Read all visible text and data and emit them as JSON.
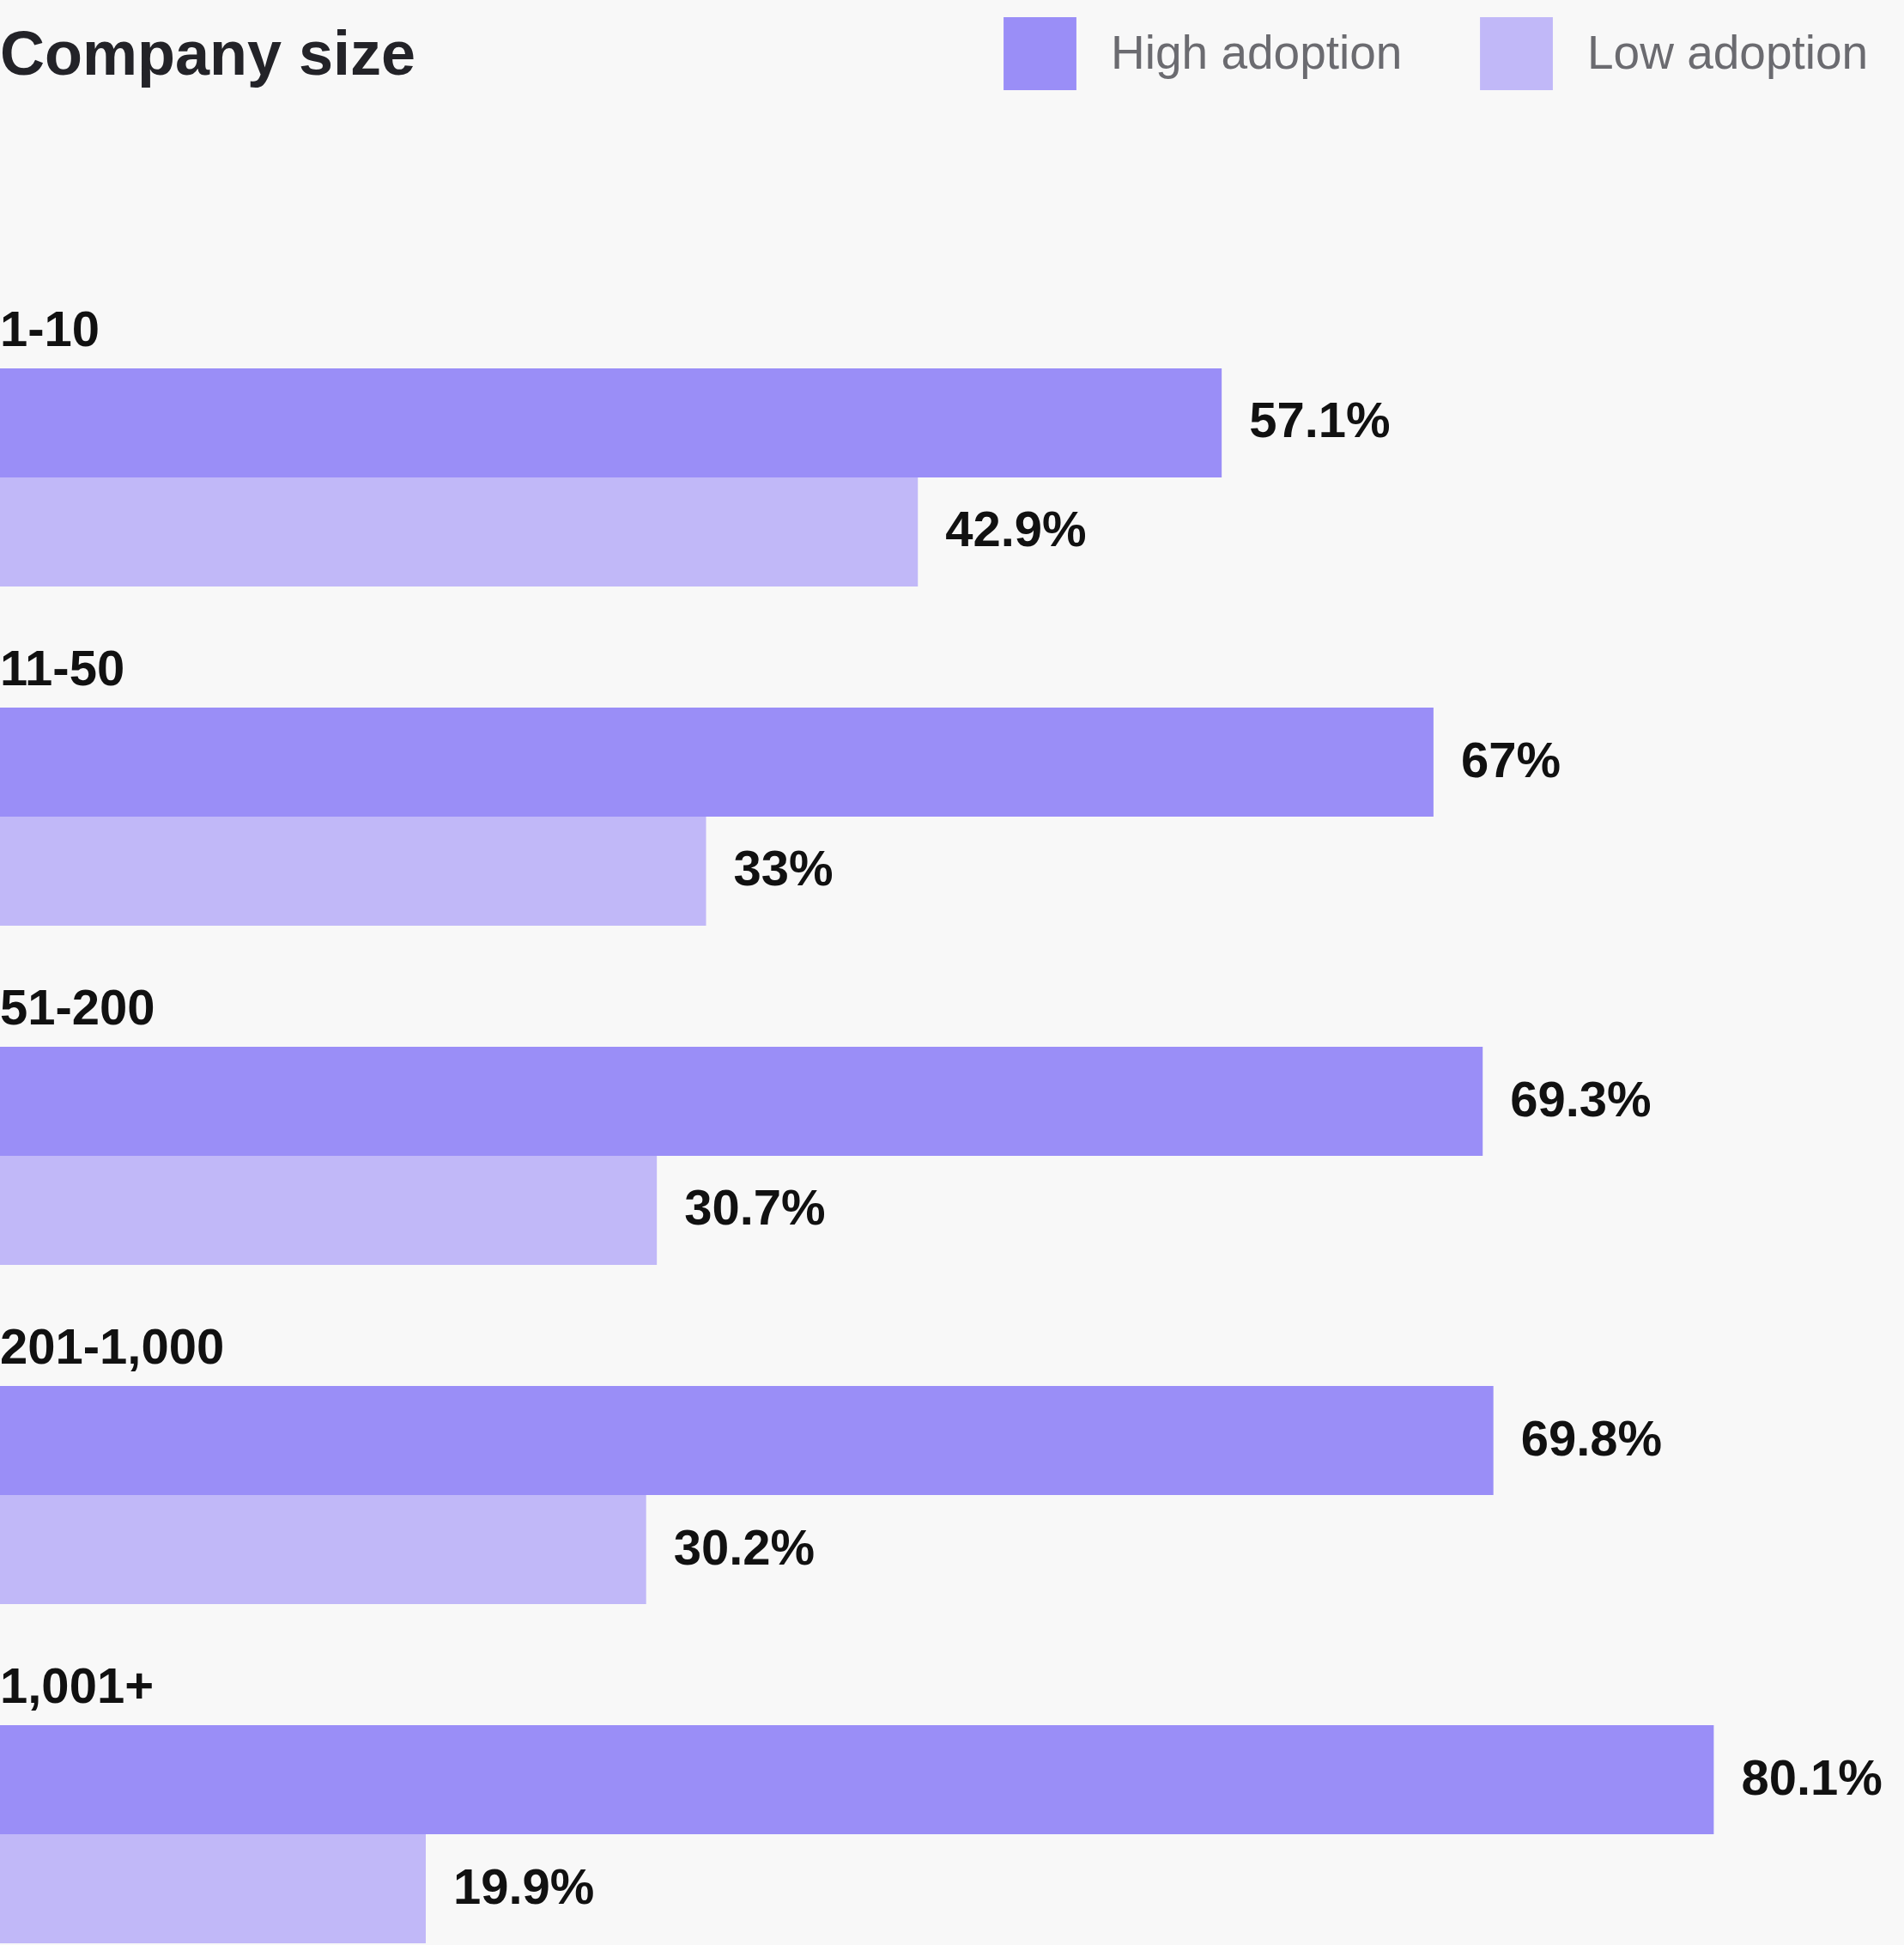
{
  "chart_data": {
    "type": "bar",
    "orientation": "horizontal",
    "title": "Company size",
    "categories": [
      "1-10",
      "11-50",
      "51-200",
      "201-1,000",
      "1,001+"
    ],
    "series": [
      {
        "name": "High adoption",
        "color": "#9a8ef7",
        "values": [
          57.1,
          67,
          69.3,
          69.8,
          80.1
        ],
        "value_labels": [
          "57.1%",
          "67%",
          "69.3%",
          "69.8%",
          "80.1%"
        ]
      },
      {
        "name": "Low adoption",
        "color": "#c1b8f8",
        "values": [
          42.9,
          33,
          30.7,
          30.2,
          19.9
        ],
        "value_labels": [
          "42.9%",
          "33%",
          "30.7%",
          "30.2%",
          "19.9%"
        ]
      }
    ],
    "legend": "top right"
  }
}
